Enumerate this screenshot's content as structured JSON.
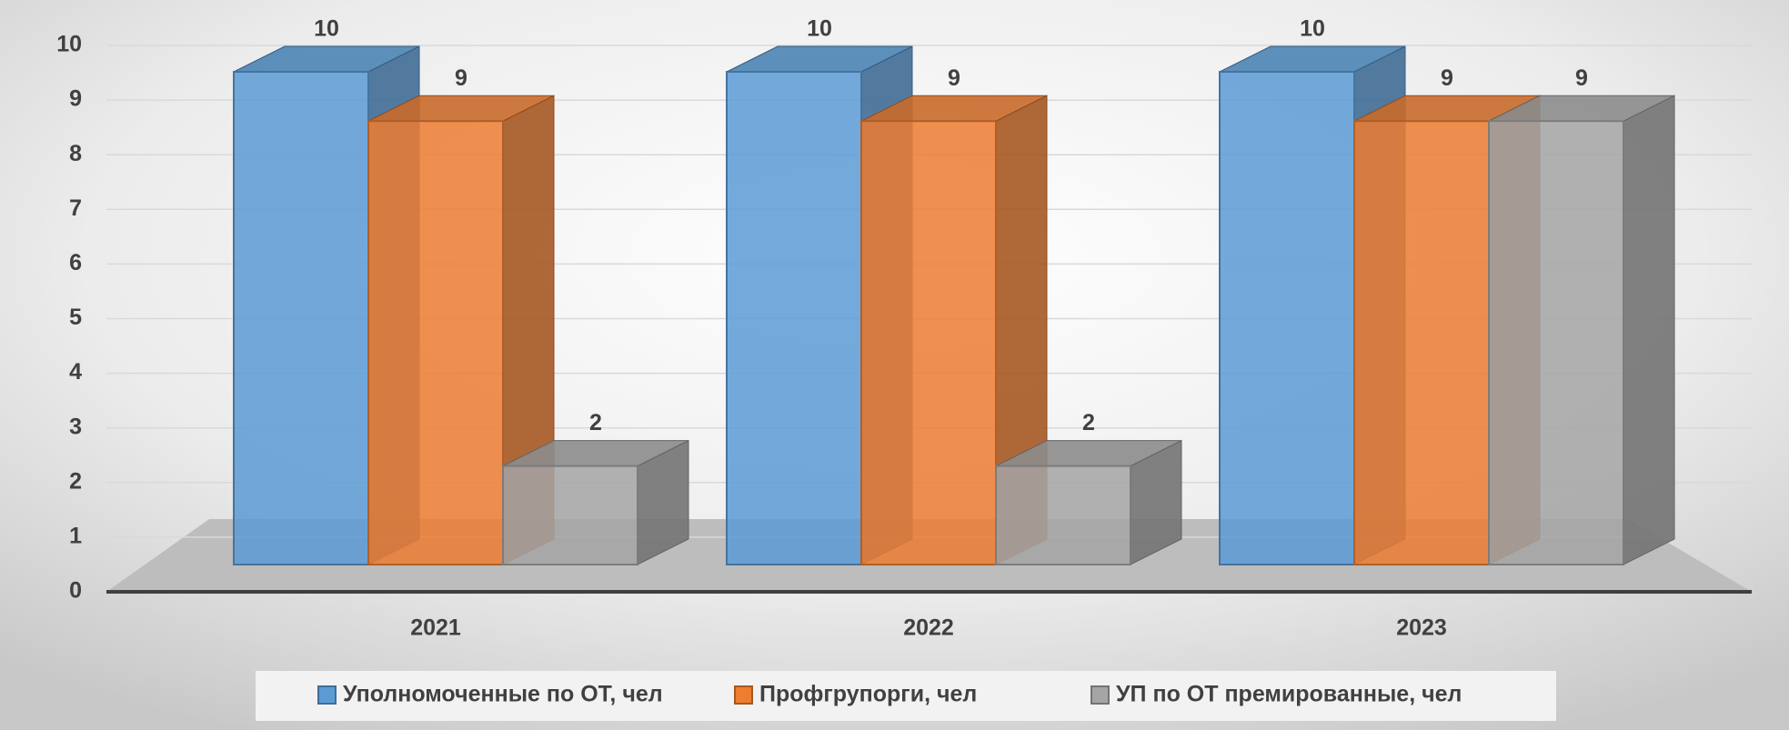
{
  "chart_data": {
    "type": "bar3d",
    "categories": [
      "2021",
      "2022",
      "2023"
    ],
    "series": [
      {
        "name": "Уполномоченные по ОТ, чел",
        "color": "#5b9bd5",
        "values": [
          10,
          10,
          10
        ]
      },
      {
        "name": "Профгрупорги, чел",
        "color": "#ed7d31",
        "values": [
          9,
          9,
          9
        ]
      },
      {
        "name": "УП по ОТ премированные, чел",
        "color": "#a5a5a5",
        "values": [
          2,
          2,
          9
        ]
      }
    ],
    "ylim": [
      0,
      10
    ],
    "yticks": [
      0,
      1,
      2,
      3,
      4,
      5,
      6,
      7,
      8,
      9,
      10
    ],
    "grid": true,
    "legend": "bottom"
  }
}
